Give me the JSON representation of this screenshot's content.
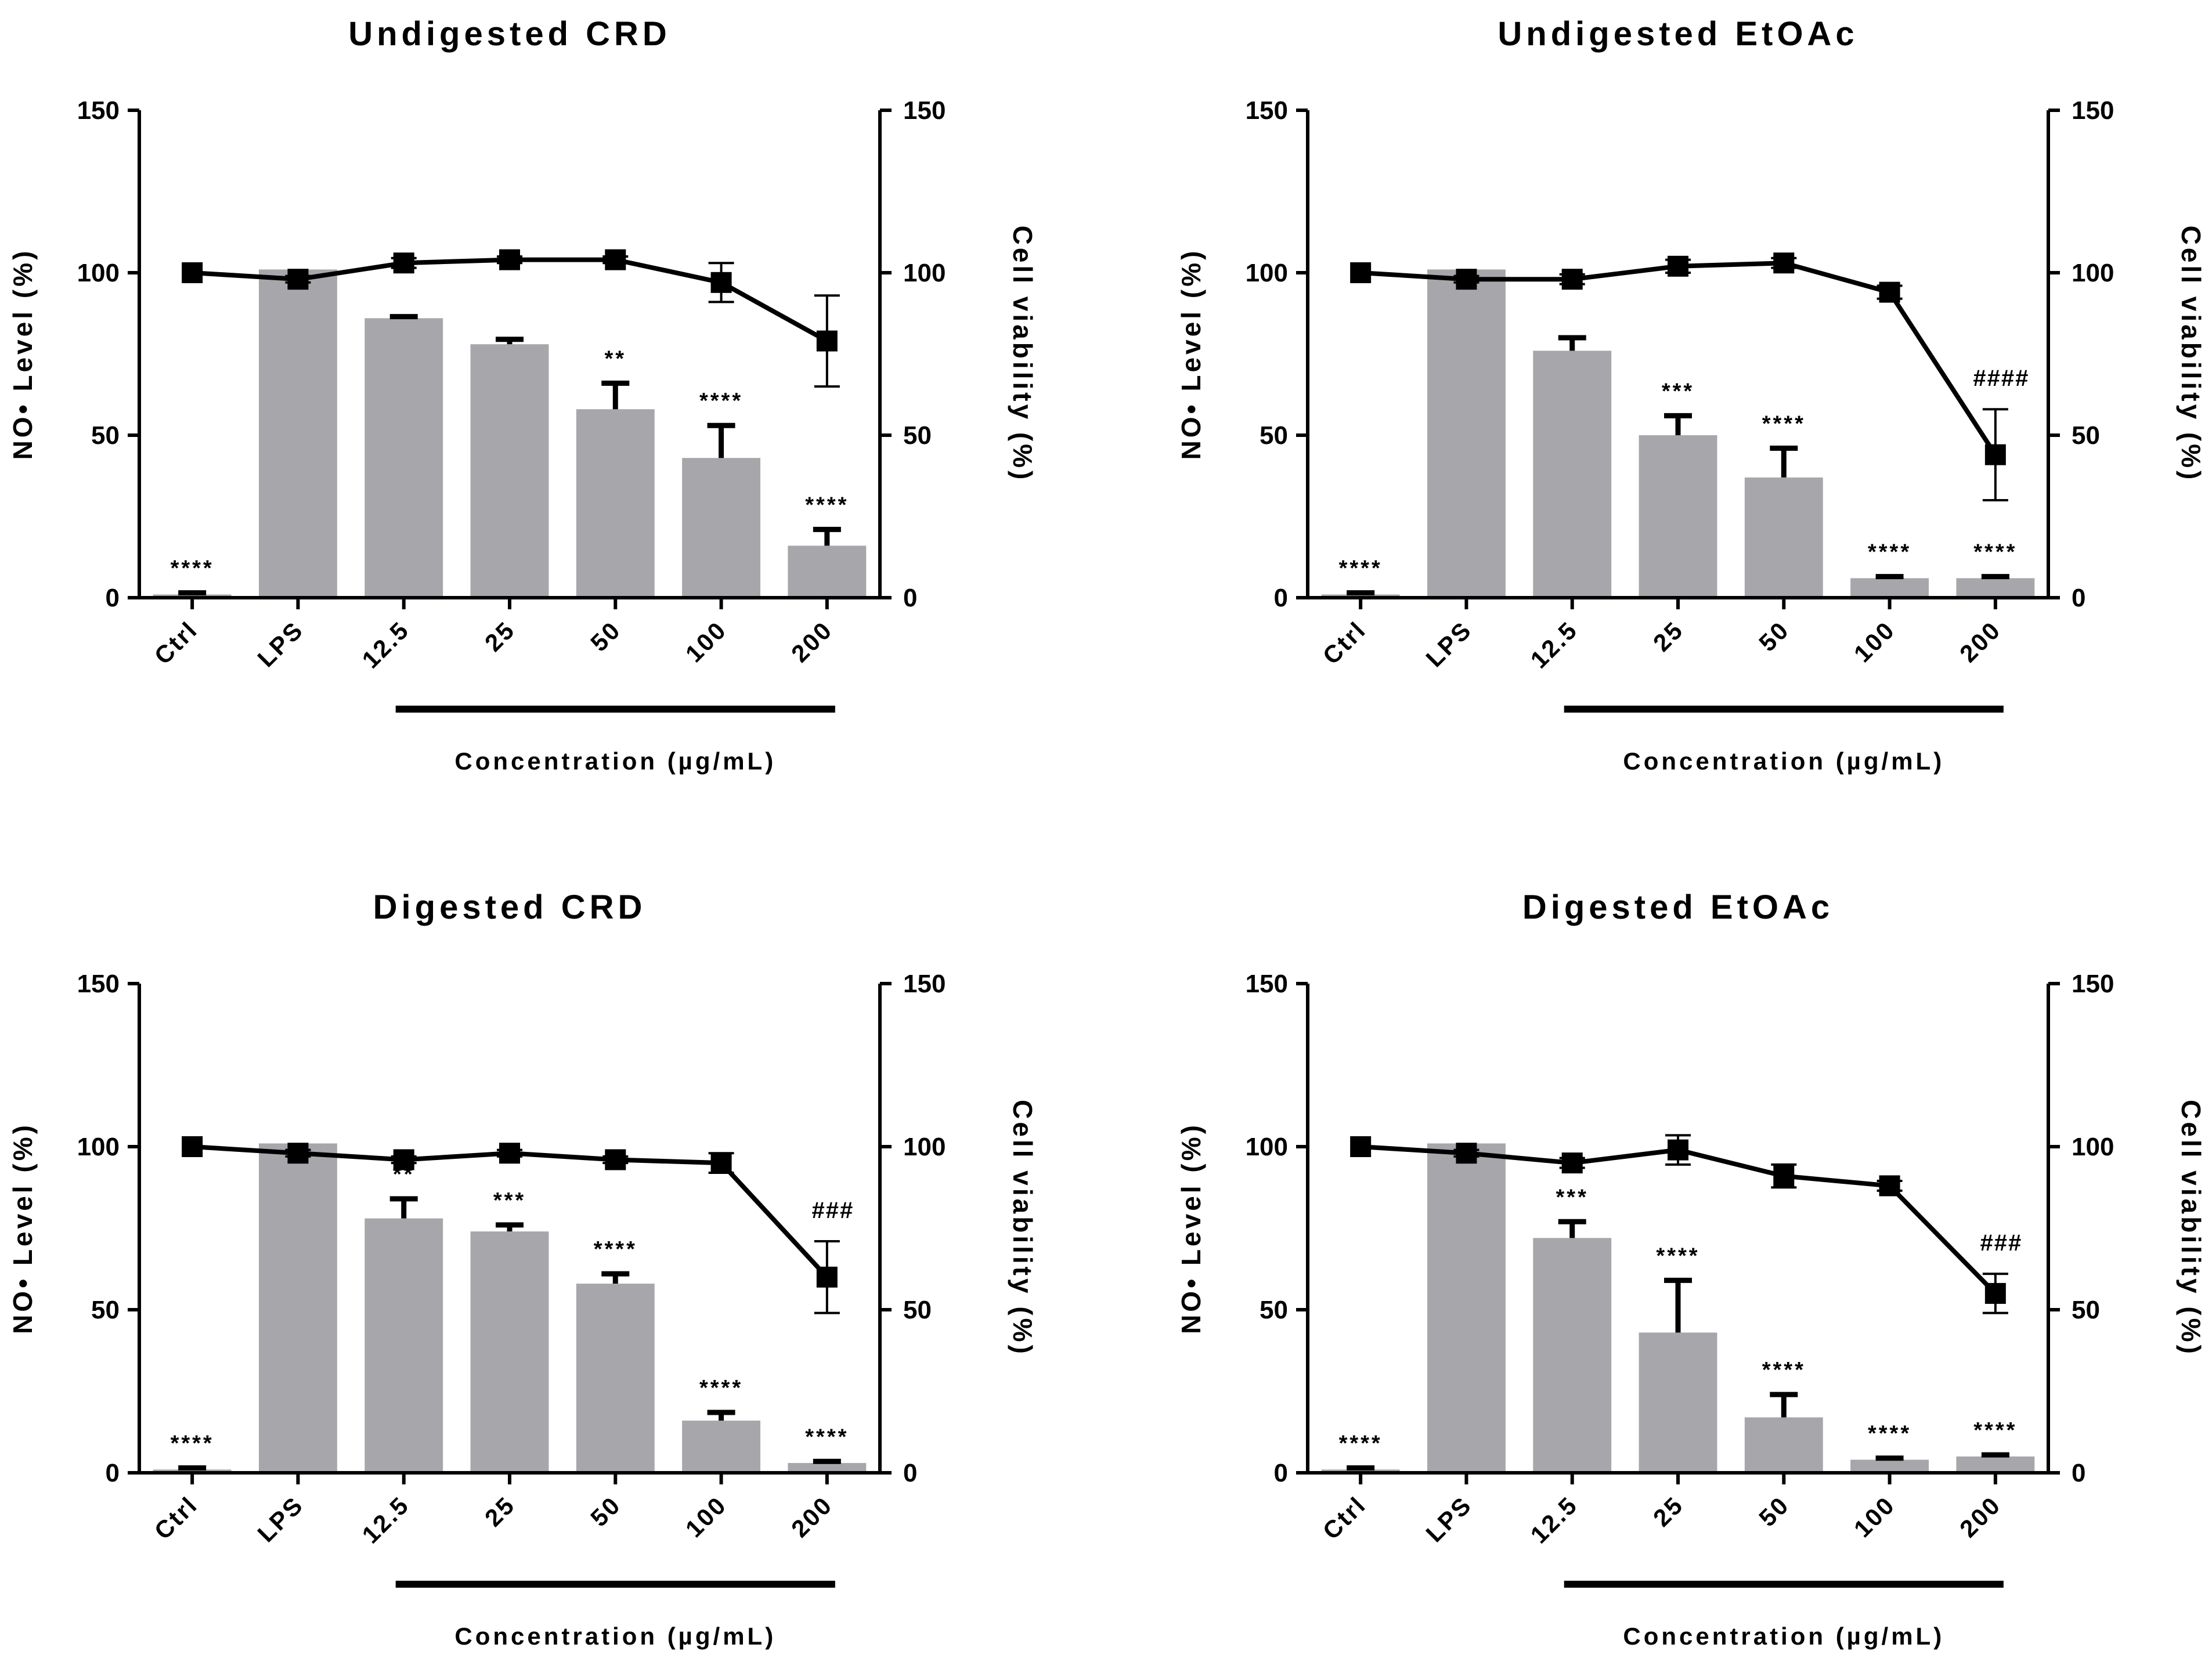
{
  "chart_data": [
    {
      "type": "bar",
      "title": "Undigested CRD",
      "categories": [
        "Ctrl",
        "LPS",
        "12.5",
        "25",
        "50",
        "100",
        "200"
      ],
      "ylabel": "NO• Level (%)",
      "y2label": "Cell viability (%)",
      "xlabel": "Concentration (µg/mL)",
      "ylim": [
        0,
        150
      ],
      "y2lim": [
        0,
        150
      ],
      "yticks": [
        "0",
        "50",
        "100",
        "150"
      ],
      "series": [
        {
          "name": "NO• Level",
          "kind": "bar",
          "color": "#a7a7ab",
          "values": [
            1,
            101,
            86,
            78,
            58,
            43,
            16
          ],
          "errors": [
            0.5,
            0,
            0.5,
            1.5,
            8,
            10,
            5
          ]
        },
        {
          "name": "Cell viability",
          "kind": "line",
          "color": "#000000",
          "values": [
            100,
            98,
            103,
            104,
            104,
            97,
            79
          ],
          "errors": [
            0,
            1,
            1.5,
            1,
            1,
            6,
            14
          ]
        }
      ],
      "bar_annotations": [
        "****",
        "",
        "",
        "",
        "**",
        "****",
        "****"
      ],
      "line_annotations": [
        "",
        "",
        "",
        "",
        "",
        "",
        ""
      ]
    },
    {
      "type": "bar",
      "title": "Undigested EtOAc",
      "categories": [
        "Ctrl",
        "LPS",
        "12.5",
        "25",
        "50",
        "100",
        "200"
      ],
      "ylabel": "NO• Level (%)",
      "y2label": "Cell viability (%)",
      "xlabel": "Concentration (µg/mL)",
      "ylim": [
        0,
        150
      ],
      "y2lim": [
        0,
        150
      ],
      "yticks": [
        "0",
        "50",
        "100",
        "150"
      ],
      "series": [
        {
          "name": "NO• Level",
          "kind": "bar",
          "color": "#a7a7ab",
          "values": [
            1,
            101,
            76,
            50,
            37,
            6,
            6
          ],
          "errors": [
            0.5,
            0,
            4,
            6,
            9,
            0.5,
            0.5
          ]
        },
        {
          "name": "Cell viability",
          "kind": "line",
          "color": "#000000",
          "values": [
            100,
            98,
            98,
            102,
            103,
            94,
            44
          ],
          "errors": [
            0,
            1,
            1.5,
            2,
            1.5,
            2,
            14
          ]
        }
      ],
      "bar_annotations": [
        "****",
        "",
        "",
        "***",
        "****",
        "****",
        "****"
      ],
      "line_annotations": [
        "",
        "",
        "",
        "",
        "",
        "",
        "####"
      ]
    },
    {
      "type": "bar",
      "title": "Digested CRD",
      "categories": [
        "Ctrl",
        "LPS",
        "12.5",
        "25",
        "50",
        "100",
        "200"
      ],
      "ylabel": "NO• Level (%)",
      "y2label": "Cell viability (%)",
      "xlabel": "Concentration (µg/mL)",
      "ylim": [
        0,
        150
      ],
      "y2lim": [
        0,
        150
      ],
      "yticks": [
        "0",
        "50",
        "100",
        "150"
      ],
      "series": [
        {
          "name": "NO• Level",
          "kind": "bar",
          "color": "#a7a7ab",
          "values": [
            1,
            101,
            78,
            74,
            58,
            16,
            3
          ],
          "errors": [
            0.5,
            0,
            6,
            2,
            3,
            2.5,
            0.5
          ]
        },
        {
          "name": "Cell viability",
          "kind": "line",
          "color": "#000000",
          "values": [
            100,
            98,
            96,
            98,
            96,
            95,
            60
          ],
          "errors": [
            0,
            1,
            1,
            1,
            1,
            3,
            11
          ]
        }
      ],
      "bar_annotations": [
        "****",
        "",
        "**",
        "***",
        "****",
        "****",
        "****"
      ],
      "line_annotations": [
        "",
        "",
        "",
        "",
        "",
        "",
        "###"
      ]
    },
    {
      "type": "bar",
      "title": "Digested EtOAc",
      "categories": [
        "Ctrl",
        "LPS",
        "12.5",
        "25",
        "50",
        "100",
        "200"
      ],
      "ylabel": "NO• Level (%)",
      "y2label": "Cell viability (%)",
      "xlabel": "Concentration (µg/mL)",
      "ylim": [
        0,
        150
      ],
      "y2lim": [
        0,
        150
      ],
      "yticks": [
        "0",
        "50",
        "100",
        "150"
      ],
      "series": [
        {
          "name": "NO• Level",
          "kind": "bar",
          "color": "#a7a7ab",
          "values": [
            1,
            101,
            72,
            43,
            17,
            4,
            5
          ],
          "errors": [
            0.5,
            0,
            5,
            16,
            7,
            0.5,
            0.5
          ]
        },
        {
          "name": "Cell viability",
          "kind": "line",
          "color": "#000000",
          "values": [
            100,
            98,
            95,
            99,
            91,
            88,
            55
          ],
          "errors": [
            0,
            1,
            1.5,
            4.5,
            3.5,
            1.5,
            6
          ]
        }
      ],
      "bar_annotations": [
        "****",
        "",
        "***",
        "****",
        "****",
        "****",
        "****"
      ],
      "line_annotations": [
        "",
        "",
        "",
        "",
        "",
        "",
        "###"
      ]
    }
  ]
}
